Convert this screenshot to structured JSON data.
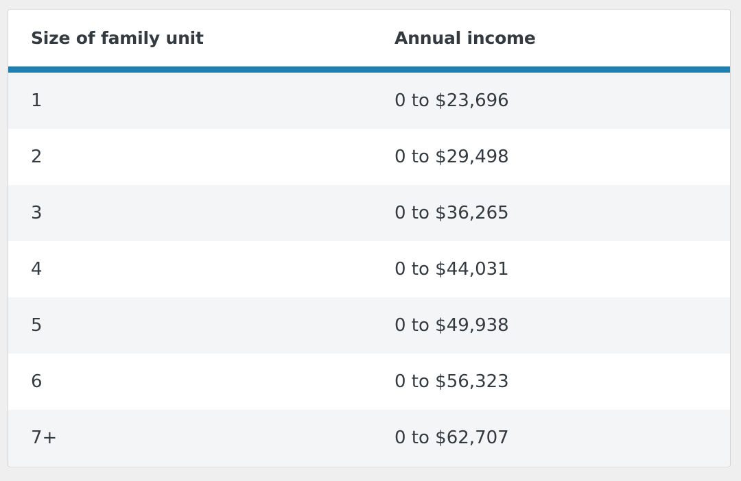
{
  "table": {
    "headers": {
      "size": "Size of family unit",
      "income": "Annual income"
    },
    "rows": [
      {
        "size": "1",
        "income": "0 to $23,696"
      },
      {
        "size": "2",
        "income": "0 to $29,498"
      },
      {
        "size": "3",
        "income": "0 to $36,265"
      },
      {
        "size": "4",
        "income": "0 to $44,031"
      },
      {
        "size": "5",
        "income": "0 to $49,938"
      },
      {
        "size": "6",
        "income": "0 to $56,323"
      },
      {
        "size": "7+",
        "income": "0 to $62,707"
      }
    ],
    "colors": {
      "header_rule": "#1f7fb0",
      "stripe": "#f4f5f7",
      "text": "#333a40"
    }
  }
}
